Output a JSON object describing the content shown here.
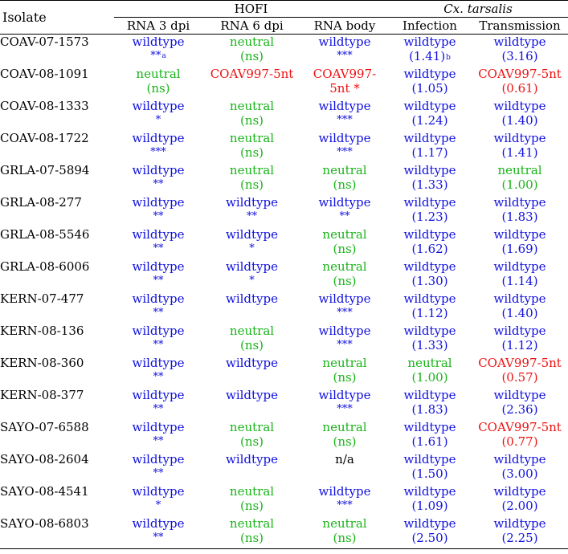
{
  "colors": {
    "wildtype": "#1010e0",
    "neutral": "#19b419",
    "mutant": "#ee1111",
    "plain": "#000000"
  },
  "header": {
    "isolate_label": "Isolate",
    "group_hofi": "HOFI",
    "group_cx": "Cx. tarsalis",
    "columns": [
      "RNA 3 dpi",
      "RNA 6 dpi",
      "RNA body",
      "Infection",
      "Transmission"
    ]
  },
  "rows": [
    {
      "isolate": "COAV-07-1573",
      "cells": [
        {
          "l1": "wildtype",
          "l2": "**",
          "sup": "a",
          "color": "blue"
        },
        {
          "l1": "neutral",
          "l2": "(ns)",
          "color": "green"
        },
        {
          "l1": "wildtype",
          "l2": "***",
          "color": "blue"
        },
        {
          "l1": "wildtype",
          "l2": "(1.41)",
          "sup": "b",
          "color": "blue"
        },
        {
          "l1": "wildtype",
          "l2": "(3.16)",
          "color": "blue"
        }
      ]
    },
    {
      "isolate": "COAV-08-1091",
      "cells": [
        {
          "l1": "neutral",
          "l2": "(ns)",
          "color": "green"
        },
        {
          "l1": "COAV997-5nt",
          "l2": "",
          "color": "red"
        },
        {
          "l1": "COAV997-",
          "l2": "5nt *",
          "color": "red"
        },
        {
          "l1": "wildtype",
          "l2": "(1.05)",
          "color": "blue"
        },
        {
          "l1": "COAV997-5nt",
          "l2": "(0.61)",
          "color": "red"
        }
      ]
    },
    {
      "isolate": "COAV-08-1333",
      "cells": [
        {
          "l1": "wildtype",
          "l2": "*",
          "color": "blue"
        },
        {
          "l1": "neutral",
          "l2": "(ns)",
          "color": "green"
        },
        {
          "l1": "wildtype",
          "l2": "***",
          "color": "blue"
        },
        {
          "l1": "wildtype",
          "l2": "(1.24)",
          "color": "blue"
        },
        {
          "l1": "wildtype",
          "l2": "(1.40)",
          "color": "blue"
        }
      ]
    },
    {
      "isolate": "COAV-08-1722",
      "cells": [
        {
          "l1": "wildtype",
          "l2": "***",
          "color": "blue"
        },
        {
          "l1": "neutral",
          "l2": "(ns)",
          "color": "green"
        },
        {
          "l1": "wildtype",
          "l2": "***",
          "color": "blue"
        },
        {
          "l1": "wildtype",
          "l2": "(1.17)",
          "color": "blue"
        },
        {
          "l1": "wildtype",
          "l2": "(1.41)",
          "color": "blue"
        }
      ]
    },
    {
      "isolate": "GRLA-07-5894",
      "cells": [
        {
          "l1": "wildtype",
          "l2": "**",
          "color": "blue"
        },
        {
          "l1": "neutral",
          "l2": "(ns)",
          "color": "green"
        },
        {
          "l1": "neutral",
          "l2": "(ns)",
          "color": "green"
        },
        {
          "l1": "wildtype",
          "l2": "(1.33)",
          "color": "blue"
        },
        {
          "l1": "neutral",
          "l2": "(1.00)",
          "color": "green"
        }
      ]
    },
    {
      "isolate": "GRLA-08-277",
      "cells": [
        {
          "l1": "wildtype",
          "l2": "**",
          "color": "blue"
        },
        {
          "l1": "wildtype",
          "l2": "**",
          "color": "blue"
        },
        {
          "l1": "wildtype",
          "l2": "**",
          "color": "blue"
        },
        {
          "l1": "wildtype",
          "l2": "(1.23)",
          "color": "blue"
        },
        {
          "l1": "wildtype",
          "l2": "(1.83)",
          "color": "blue"
        }
      ]
    },
    {
      "isolate": "GRLA-08-5546",
      "cells": [
        {
          "l1": "wildtype",
          "l2": "**",
          "color": "blue"
        },
        {
          "l1": "wildtype",
          "l2": "*",
          "color": "blue"
        },
        {
          "l1": "neutral",
          "l2": "(ns)",
          "color": "green"
        },
        {
          "l1": "wildtype",
          "l2": "(1.62)",
          "color": "blue"
        },
        {
          "l1": "wildtype",
          "l2": "(1.69)",
          "color": "blue"
        }
      ]
    },
    {
      "isolate": "GRLA-08-6006",
      "cells": [
        {
          "l1": "wildtype",
          "l2": "**",
          "color": "blue"
        },
        {
          "l1": "wildtype",
          "l2": "*",
          "color": "blue"
        },
        {
          "l1": "neutral",
          "l2": "(ns)",
          "color": "green"
        },
        {
          "l1": "wildtype",
          "l2": "(1.30)",
          "color": "blue"
        },
        {
          "l1": "wildtype",
          "l2": "(1.14)",
          "color": "blue"
        }
      ]
    },
    {
      "isolate": "KERN-07-477",
      "cells": [
        {
          "l1": "wildtype",
          "l2": "**",
          "color": "blue"
        },
        {
          "l1": "wildtype",
          "l2": "",
          "color": "blue"
        },
        {
          "l1": "wildtype",
          "l2": "***",
          "color": "blue"
        },
        {
          "l1": "wildtype",
          "l2": "(1.12)",
          "color": "blue"
        },
        {
          "l1": "wildtype",
          "l2": "(1.40)",
          "color": "blue"
        }
      ]
    },
    {
      "isolate": "KERN-08-136",
      "cells": [
        {
          "l1": "wildtype",
          "l2": "**",
          "color": "blue"
        },
        {
          "l1": "neutral",
          "l2": "(ns)",
          "color": "green"
        },
        {
          "l1": "wildtype",
          "l2": "***",
          "color": "blue"
        },
        {
          "l1": "wildtype",
          "l2": "(1.33)",
          "color": "blue"
        },
        {
          "l1": "wildtype",
          "l2": "(1.12)",
          "color": "blue"
        }
      ]
    },
    {
      "isolate": "KERN-08-360",
      "cells": [
        {
          "l1": "wildtype",
          "l2": "**",
          "color": "blue"
        },
        {
          "l1": "wildtype",
          "l2": "",
          "color": "blue"
        },
        {
          "l1": "neutral",
          "l2": "(ns)",
          "color": "green"
        },
        {
          "l1": "neutral",
          "l2": "(1.00)",
          "color": "green"
        },
        {
          "l1": "COAV997-5nt",
          "l2": "(0.57)",
          "color": "red"
        }
      ]
    },
    {
      "isolate": "KERN-08-377",
      "cells": [
        {
          "l1": "wildtype",
          "l2": "**",
          "color": "blue"
        },
        {
          "l1": "wildtype",
          "l2": "",
          "color": "blue"
        },
        {
          "l1": "wildtype",
          "l2": "***",
          "color": "blue"
        },
        {
          "l1": "wildtype",
          "l2": "(1.83)",
          "color": "blue"
        },
        {
          "l1": "wildtype",
          "l2": "(2.36)",
          "color": "blue"
        }
      ]
    },
    {
      "isolate": "SAYO-07-6588",
      "cells": [
        {
          "l1": "wildtype",
          "l2": "**",
          "color": "blue"
        },
        {
          "l1": "neutral",
          "l2": "(ns)",
          "color": "green"
        },
        {
          "l1": "neutral",
          "l2": "(ns)",
          "color": "green"
        },
        {
          "l1": "wildtype",
          "l2": "(1.61)",
          "color": "blue"
        },
        {
          "l1": "COAV997-5nt",
          "l2": "(0.77)",
          "color": "red"
        }
      ]
    },
    {
      "isolate": "SAYO-08-2604",
      "cells": [
        {
          "l1": "wildtype",
          "l2": "**",
          "color": "blue"
        },
        {
          "l1": "wildtype",
          "l2": "",
          "color": "blue"
        },
        {
          "l1": "",
          "l2": "n/a",
          "color": "black"
        },
        {
          "l1": "wildtype",
          "l2": "(1.50)",
          "color": "blue"
        },
        {
          "l1": "wildtype",
          "l2": "(3.00)",
          "color": "blue"
        }
      ]
    },
    {
      "isolate": "SAYO-08-4541",
      "cells": [
        {
          "l1": "wildtype",
          "l2": "*",
          "color": "blue"
        },
        {
          "l1": "neutral",
          "l2": "(ns)",
          "color": "green"
        },
        {
          "l1": "wildtype",
          "l2": "***",
          "color": "blue"
        },
        {
          "l1": "wildtype",
          "l2": "(1.09)",
          "color": "blue"
        },
        {
          "l1": "wildtype",
          "l2": "(2.00)",
          "color": "blue"
        }
      ]
    },
    {
      "isolate": "SAYO-08-6803",
      "cells": [
        {
          "l1": "wildtype",
          "l2": "**",
          "color": "blue"
        },
        {
          "l1": "neutral",
          "l2": "(ns)",
          "color": "green"
        },
        {
          "l1": "neutral",
          "l2": "(ns)",
          "color": "green"
        },
        {
          "l1": "wildtype",
          "l2": "(2.50)",
          "color": "blue"
        },
        {
          "l1": "wildtype",
          "l2": "(2.25)",
          "color": "blue"
        }
      ]
    }
  ]
}
